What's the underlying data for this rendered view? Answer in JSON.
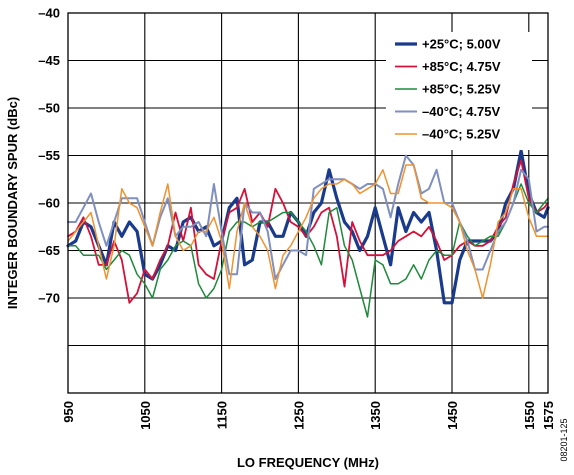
{
  "chart_data": {
    "type": "line",
    "xlabel": "LO FREQUENCY (MHz)",
    "ylabel": "INTEGER BOUNDARY SPUR (dBc)",
    "xlim": [
      950,
      1575
    ],
    "ylim": [
      -80,
      -40
    ],
    "xticks": [
      950,
      1050,
      1150,
      1250,
      1350,
      1450,
      1550,
      1575
    ],
    "yticks": [
      -40,
      -45,
      -50,
      -55,
      -60,
      -65,
      -70
    ],
    "grid": true,
    "legend_position": "top-right",
    "figure_id": "08201-125",
    "x": [
      950,
      960,
      970,
      980,
      990,
      1000,
      1010,
      1020,
      1030,
      1040,
      1050,
      1060,
      1070,
      1080,
      1090,
      1100,
      1110,
      1120,
      1130,
      1140,
      1150,
      1160,
      1170,
      1180,
      1190,
      1200,
      1210,
      1220,
      1230,
      1240,
      1250,
      1260,
      1270,
      1280,
      1290,
      1300,
      1310,
      1320,
      1330,
      1340,
      1350,
      1360,
      1370,
      1380,
      1390,
      1400,
      1410,
      1420,
      1430,
      1440,
      1450,
      1460,
      1470,
      1480,
      1490,
      1500,
      1510,
      1520,
      1530,
      1540,
      1550,
      1560,
      1570,
      1575
    ],
    "series": [
      {
        "name": "+25°C; 5.00V",
        "color": "#1a3a8c",
        "width": 3.2,
        "values": [
          -64.5,
          -64.0,
          -62.0,
          -62.5,
          -64.5,
          -66.5,
          -62.0,
          -63.5,
          -62.0,
          -63.0,
          -67.5,
          -68.0,
          -66.5,
          -64.5,
          -65.0,
          -62.0,
          -61.5,
          -63.0,
          -62.5,
          -64.5,
          -64.0,
          -60.5,
          -59.5,
          -66.5,
          -66.0,
          -62.0,
          -62.0,
          -63.5,
          -63.5,
          -61.0,
          -62.0,
          -63.5,
          -61.0,
          -60.0,
          -56.5,
          -59.5,
          -62.0,
          -63.0,
          -65.0,
          -63.5,
          -60.5,
          -63.5,
          -66.5,
          -60.5,
          -63.0,
          -61.0,
          -62.0,
          -61.0,
          -65.0,
          -70.5,
          -70.5,
          -66.0,
          -64.0,
          -64.0,
          -64.0,
          -64.0,
          -63.0,
          -60.0,
          -58.5,
          -54.5,
          -59.0,
          -61.0,
          -61.5,
          -60.5
        ]
      },
      {
        "name": "+85°C; 4.75V",
        "color": "#d4113a",
        "width": 1.8,
        "values": [
          -63.5,
          -63.0,
          -61.5,
          -63.5,
          -66.5,
          -66.5,
          -64.0,
          -66.0,
          -70.5,
          -69.5,
          -67.0,
          -68.0,
          -66.0,
          -64.5,
          -61.0,
          -64.0,
          -60.5,
          -66.5,
          -67.5,
          -68.0,
          -64.0,
          -61.0,
          -60.5,
          -58.5,
          -62.0,
          -61.0,
          -62.5,
          -58.5,
          -60.0,
          -62.0,
          -62.5,
          -63.5,
          -62.5,
          -61.0,
          -60.5,
          -63.5,
          -68.8,
          -62.0,
          -64.0,
          -65.5,
          -65.5,
          -65.5,
          -65.0,
          -64.0,
          -63.5,
          -63.0,
          -63.5,
          -62.5,
          -64.0,
          -66.0,
          -65.5,
          -64.5,
          -64.0,
          -64.5,
          -64.5,
          -64.0,
          -62.5,
          -61.5,
          -58.0,
          -55.5,
          -59.5,
          -61.0,
          -60.5,
          -60.0
        ]
      },
      {
        "name": "+85°C; 5.25V",
        "color": "#1f8a3c",
        "width": 1.5,
        "values": [
          -64.5,
          -64.5,
          -65.5,
          -65.5,
          -65.5,
          -67.0,
          -66.0,
          -65.0,
          -65.5,
          -67.5,
          -68.5,
          -70.0,
          -67.0,
          -66.0,
          -64.5,
          -64.0,
          -64.5,
          -68.5,
          -70.0,
          -69.0,
          -67.0,
          -63.0,
          -62.0,
          -62.0,
          -62.5,
          -62.0,
          -62.0,
          -61.5,
          -61.0,
          -61.0,
          -62.0,
          -63.0,
          -64.5,
          -66.5,
          -61.0,
          -60.5,
          -64.5,
          -66.0,
          -69.0,
          -72.0,
          -66.0,
          -66.5,
          -68.5,
          -68.5,
          -68.0,
          -66.5,
          -68.0,
          -66.0,
          -65.0,
          -65.5,
          -65.5,
          -62.0,
          -63.5,
          -64.5,
          -64.0,
          -63.5,
          -63.5,
          -62.0,
          -60.0,
          -58.0,
          -60.0,
          -61.0,
          -60.0,
          -59.5
        ]
      },
      {
        "name": "–40°C; 4.75V",
        "color": "#7f8fbf",
        "width": 2.0,
        "values": [
          -62.0,
          -62.0,
          -60.5,
          -59.0,
          -62.0,
          -64.5,
          -62.0,
          -59.5,
          -59.5,
          -59.5,
          -62.0,
          -64.5,
          -61.5,
          -59.5,
          -63.5,
          -62.5,
          -62.5,
          -62.0,
          -63.5,
          -58.0,
          -63.0,
          -67.5,
          -67.5,
          -60.0,
          -61.0,
          -61.0,
          -63.0,
          -68.0,
          -66.5,
          -65.0,
          -65.0,
          -65.5,
          -58.5,
          -58.0,
          -57.5,
          -57.5,
          -57.5,
          -58.0,
          -58.5,
          -58.0,
          -58.0,
          -58.5,
          -61.5,
          -58.0,
          -55.0,
          -56.0,
          -59.0,
          -58.5,
          -56.5,
          -60.0,
          -60.0,
          -62.0,
          -64.0,
          -67.0,
          -67.0,
          -65.0,
          -63.0,
          -62.0,
          -60.0,
          -56.5,
          -57.5,
          -63.0,
          -62.5,
          -62.5
        ]
      },
      {
        "name": "–40°C; 5.25V",
        "color": "#f0922e",
        "width": 1.5,
        "values": [
          -64.0,
          -63.0,
          -62.0,
          -61.0,
          -64.5,
          -68.0,
          -64.5,
          -58.5,
          -60.0,
          -60.5,
          -62.5,
          -64.5,
          -61.0,
          -58.0,
          -63.5,
          -65.0,
          -64.5,
          -63.0,
          -63.0,
          -61.5,
          -64.0,
          -69.0,
          -63.0,
          -60.0,
          -62.5,
          -63.5,
          -65.0,
          -69.0,
          -65.5,
          -64.5,
          -63.0,
          -61.5,
          -59.5,
          -58.5,
          -58.0,
          -58.0,
          -57.5,
          -58.0,
          -59.0,
          -58.5,
          -58.0,
          -56.5,
          -59.0,
          -59.0,
          -56.0,
          -56.0,
          -59.5,
          -60.0,
          -60.0,
          -60.0,
          -60.5,
          -62.0,
          -65.0,
          -67.0,
          -70.0,
          -66.5,
          -62.0,
          -61.0,
          -58.5,
          -58.5,
          -61.5,
          -63.5,
          -63.5,
          -63.5
        ]
      }
    ]
  }
}
